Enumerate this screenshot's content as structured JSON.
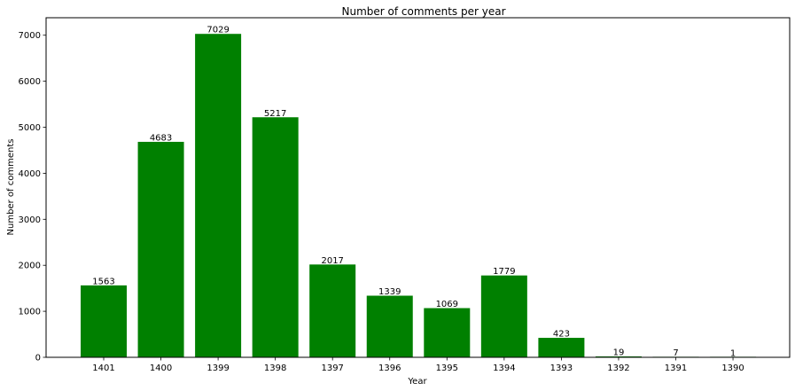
{
  "chart_data": {
    "type": "bar",
    "title": "Number of comments per year",
    "xlabel": "Year",
    "ylabel": "Number of comments",
    "categories": [
      "1401",
      "1400",
      "1399",
      "1398",
      "1397",
      "1396",
      "1395",
      "1394",
      "1393",
      "1392",
      "1391",
      "1390"
    ],
    "values": [
      1563,
      4683,
      7029,
      5217,
      2017,
      1339,
      1069,
      1779,
      423,
      19,
      7,
      1
    ],
    "data_labels": [
      "1563",
      "4683",
      "7029",
      "5217",
      "2017",
      "1339",
      "1069",
      "1779",
      "423",
      "19",
      "7",
      "1"
    ],
    "ylim": [
      0,
      7380
    ],
    "yticks": [
      0,
      1000,
      2000,
      3000,
      4000,
      5000,
      6000,
      7000
    ],
    "ytick_labels": [
      "0",
      "1000",
      "2000",
      "3000",
      "4000",
      "5000",
      "6000",
      "7000"
    ],
    "bar_color": "#008000",
    "grid": false,
    "legend": "none"
  }
}
